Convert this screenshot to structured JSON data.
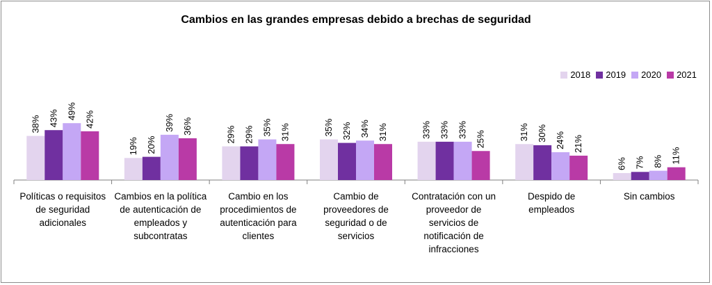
{
  "chart_data": {
    "type": "bar",
    "title": "Cambios en las grandes empresas debido a brechas de seguridad",
    "categories": [
      "Políticas o requisitos de seguridad adicionales",
      "Cambios en la política de autenticación de empleados y subcontratas",
      "Cambio en los procedimientos de autenticación para clientes",
      "Cambio de proveedores de seguridad o de servicios",
      "Contratación con un proveedor de servicios de notificación de infracciones",
      "Despido de empleados",
      "Sin cambios"
    ],
    "series": [
      {
        "name": "2018",
        "color": "#e3d4ee",
        "values": [
          38,
          19,
          29,
          35,
          33,
          31,
          6
        ]
      },
      {
        "name": "2019",
        "color": "#7030a0",
        "values": [
          43,
          20,
          29,
          32,
          33,
          30,
          7
        ]
      },
      {
        "name": "2020",
        "color": "#c4a7f5",
        "values": [
          49,
          39,
          35,
          34,
          33,
          24,
          8
        ]
      },
      {
        "name": "2021",
        "color": "#b93aa6",
        "values": [
          42,
          36,
          31,
          31,
          25,
          21,
          11
        ]
      }
    ],
    "value_suffix": "%",
    "ylim": [
      0,
      100
    ],
    "legend_position": "top-right",
    "grid": false
  }
}
